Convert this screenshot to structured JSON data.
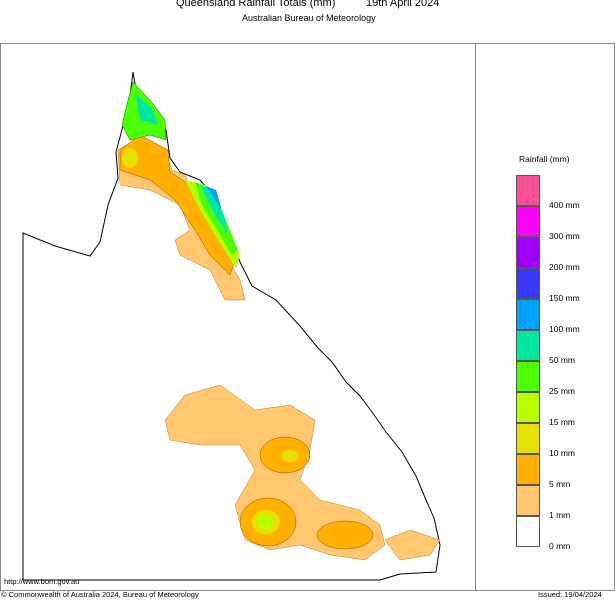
{
  "header": {
    "title": "Queensland Rainfall Totals (mm)",
    "date": "19th April 2024",
    "subtitle": "Australian Bureau of Meteorology"
  },
  "legend": {
    "title": "Rainfall (mm)",
    "colors": [
      "#ff4f95",
      "#ff00ff",
      "#a100ff",
      "#3a3aff",
      "#00a0ff",
      "#00e8a0",
      "#4cff00",
      "#b8ff00",
      "#e8e000",
      "#ffb000",
      "#ffc870",
      "#ffffff"
    ],
    "labels": [
      "400 mm",
      "300 mm",
      "200 mm",
      "150 mm",
      "100 mm",
      "50 mm",
      "25 mm",
      "15 mm",
      "10 mm",
      "5 mm",
      "1 mm",
      "0 mm"
    ]
  },
  "footer": {
    "url": "http://www.bom.gov.au",
    "copyright": "© Commonwealth of Australia 2024, Bureau of Meteorology",
    "issued": "Issued: 19/04/2024"
  }
}
